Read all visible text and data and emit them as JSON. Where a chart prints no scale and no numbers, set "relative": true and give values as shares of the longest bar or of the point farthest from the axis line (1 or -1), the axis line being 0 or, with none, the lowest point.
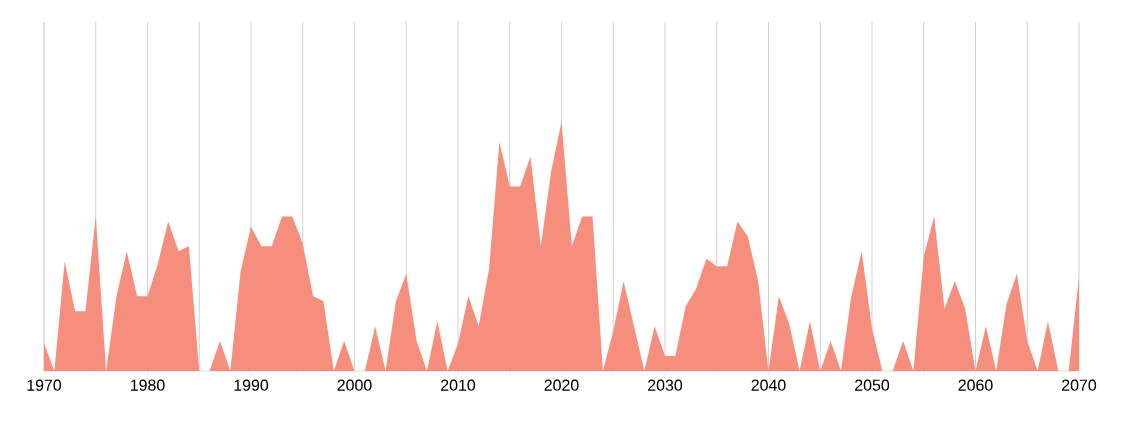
{
  "chart_data": {
    "type": "area",
    "relative": true,
    "color": "#f68e7e",
    "grid": "x",
    "x": [
      1970,
      1971,
      1972,
      1973,
      1974,
      1975,
      1976,
      1977,
      1978,
      1979,
      1980,
      1981,
      1982,
      1983,
      1984,
      1985,
      1986,
      1987,
      1988,
      1989,
      1990,
      1991,
      1992,
      1993,
      1994,
      1995,
      1996,
      1997,
      1998,
      1999,
      2000,
      2001,
      2002,
      2003,
      2004,
      2005,
      2006,
      2007,
      2008,
      2009,
      2010,
      2011,
      2012,
      2013,
      2014,
      2015,
      2016,
      2017,
      2018,
      2019,
      2020,
      2021,
      2022,
      2023,
      2024,
      2025,
      2026,
      2027,
      2028,
      2029,
      2030,
      2031,
      2032,
      2033,
      2034,
      2035,
      2036,
      2037,
      2038,
      2039,
      2040,
      2041,
      2042,
      2043,
      2044,
      2045,
      2046,
      2047,
      2048,
      2049,
      2050,
      2051,
      2052,
      2053,
      2054,
      2055,
      2056,
      2057,
      2058,
      2059,
      2060,
      2061,
      2062,
      2063,
      2064,
      2065,
      2066,
      2067,
      2068,
      2069,
      2070
    ],
    "values": [
      0.11,
      0,
      0.44,
      0.24,
      0.24,
      0.62,
      0,
      0.3,
      0.48,
      0.3,
      0.3,
      0.43,
      0.6,
      0.48,
      0.5,
      0,
      0,
      0.12,
      0,
      0.4,
      0.58,
      0.5,
      0.5,
      0.62,
      0.62,
      0.51,
      0.3,
      0.28,
      0,
      0.12,
      0,
      0,
      0.18,
      0,
      0.28,
      0.39,
      0.12,
      0,
      0.2,
      0,
      0.11,
      0.3,
      0.18,
      0.41,
      0.92,
      0.74,
      0.74,
      0.86,
      0.5,
      0.8,
      1,
      0.5,
      0.62,
      0.62,
      0,
      0.16,
      0.36,
      0.18,
      0,
      0.18,
      0.06,
      0.06,
      0.26,
      0.33,
      0.45,
      0.42,
      0.42,
      0.6,
      0.54,
      0.36,
      0,
      0.3,
      0.19,
      0,
      0.2,
      0,
      0.12,
      0,
      0.3,
      0.48,
      0.17,
      0,
      0,
      0.12,
      0,
      0.46,
      0.62,
      0.25,
      0.36,
      0.25,
      0,
      0.18,
      0,
      0.27,
      0.39,
      0.12,
      0,
      0.2,
      0,
      0,
      0.38
    ],
    "xlim": [
      1970,
      2070
    ],
    "xticks": [
      1970,
      {
        "value": 1975,
        "label": null
      },
      1980,
      {
        "value": 1985,
        "label": null
      },
      1990,
      {
        "value": 1995,
        "label": null
      },
      2000,
      {
        "value": 2005,
        "label": null
      },
      2010,
      {
        "value": 2015,
        "label": null
      },
      2020,
      {
        "value": 2025,
        "label": null
      },
      2030,
      {
        "value": 2035,
        "label": null
      },
      2040,
      {
        "value": 2045,
        "label": null
      },
      2050,
      {
        "value": 2055,
        "label": null
      },
      2060,
      {
        "value": 2065,
        "label": null
      },
      2070
    ]
  }
}
